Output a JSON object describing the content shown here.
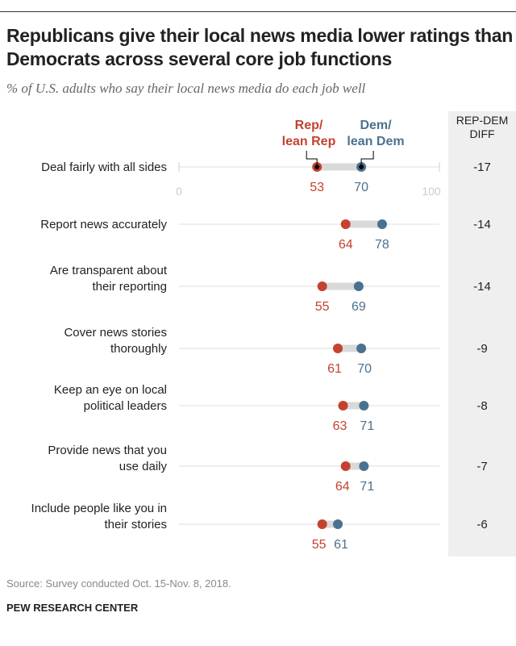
{
  "title": "Republicans give their local news media lower ratings than Democrats across several core job functions",
  "subtitle": "% of U.S. adults who say their local news media do each job well",
  "source": "Source: Survey conducted Oct. 15-Nov. 8, 2018.",
  "org": "PEW RESEARCH CENTER",
  "diff_header": [
    "REP-DEM",
    "DIFF"
  ],
  "chart_data": {
    "type": "dot",
    "xlim": [
      0,
      100
    ],
    "xticks": [
      "0",
      "100"
    ],
    "legend": {
      "rep": [
        "Rep/",
        "lean Rep"
      ],
      "dem": [
        "Dem/",
        "lean Dem"
      ]
    },
    "colors": {
      "rep": "#c4422f",
      "dem": "#4a7290",
      "bar": "#d9d9d9"
    },
    "categories": [
      [
        "Deal fairly with all sides"
      ],
      [
        "Report news accurately"
      ],
      [
        "Are transparent about",
        "their reporting"
      ],
      [
        "Cover news stories",
        "thoroughly"
      ],
      [
        "Keep an eye on local",
        "political leaders"
      ],
      [
        "Provide news that you",
        "use daily"
      ],
      [
        "Include people like you in",
        "their stories"
      ]
    ],
    "series": [
      {
        "name": "Rep/lean Rep",
        "values": [
          53,
          64,
          55,
          61,
          63,
          64,
          55
        ]
      },
      {
        "name": "Dem/lean Dem",
        "values": [
          70,
          78,
          69,
          70,
          71,
          71,
          61
        ]
      }
    ],
    "diff": [
      "-17",
      "-14",
      "-14",
      "-9",
      "-8",
      "-7",
      "-6"
    ]
  }
}
